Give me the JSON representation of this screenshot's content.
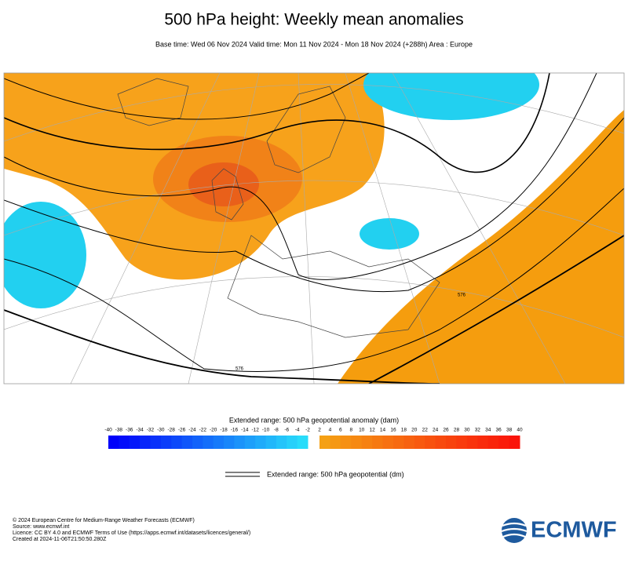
{
  "header": {
    "title": "500 hPa height: Weekly mean anomalies",
    "subtitle": "Base time: Wed 06 Nov 2024 Valid time: Mon 11 Nov 2024 - Mon 18 Nov 2024 (+288h) Area : Europe"
  },
  "map": {
    "contour_labels": [
      "576",
      "576"
    ]
  },
  "colorbar": {
    "title": "Extended range: 500 hPa geopotential anomaly (dam)",
    "negative_ticks": [
      -40,
      -38,
      -36,
      -34,
      -32,
      -30,
      -28,
      -26,
      -24,
      -22,
      -20,
      -18,
      -16,
      -14,
      -12,
      -10,
      -8,
      -6,
      -4,
      -2
    ],
    "positive_ticks": [
      2,
      4,
      6,
      8,
      10,
      12,
      14,
      16,
      18,
      20,
      22,
      24,
      26,
      28,
      30,
      32,
      34,
      36,
      38,
      40
    ]
  },
  "line_legend": {
    "label": "Extended range: 500 hPa geopotential (dm)"
  },
  "footer": {
    "lines": [
      "© 2024 European Centre for Medium-Range Weather Forecasts (ECMWF)",
      "Source: www.ecmwf.int",
      "Licence: CC BY 4.0 and ECMWF Terms of Use (https://apps.ecmwf.int/datasets/licences/general/)",
      "Created at 2024-11-06T21:50:50.280Z"
    ],
    "logo": "ECMWF"
  }
}
